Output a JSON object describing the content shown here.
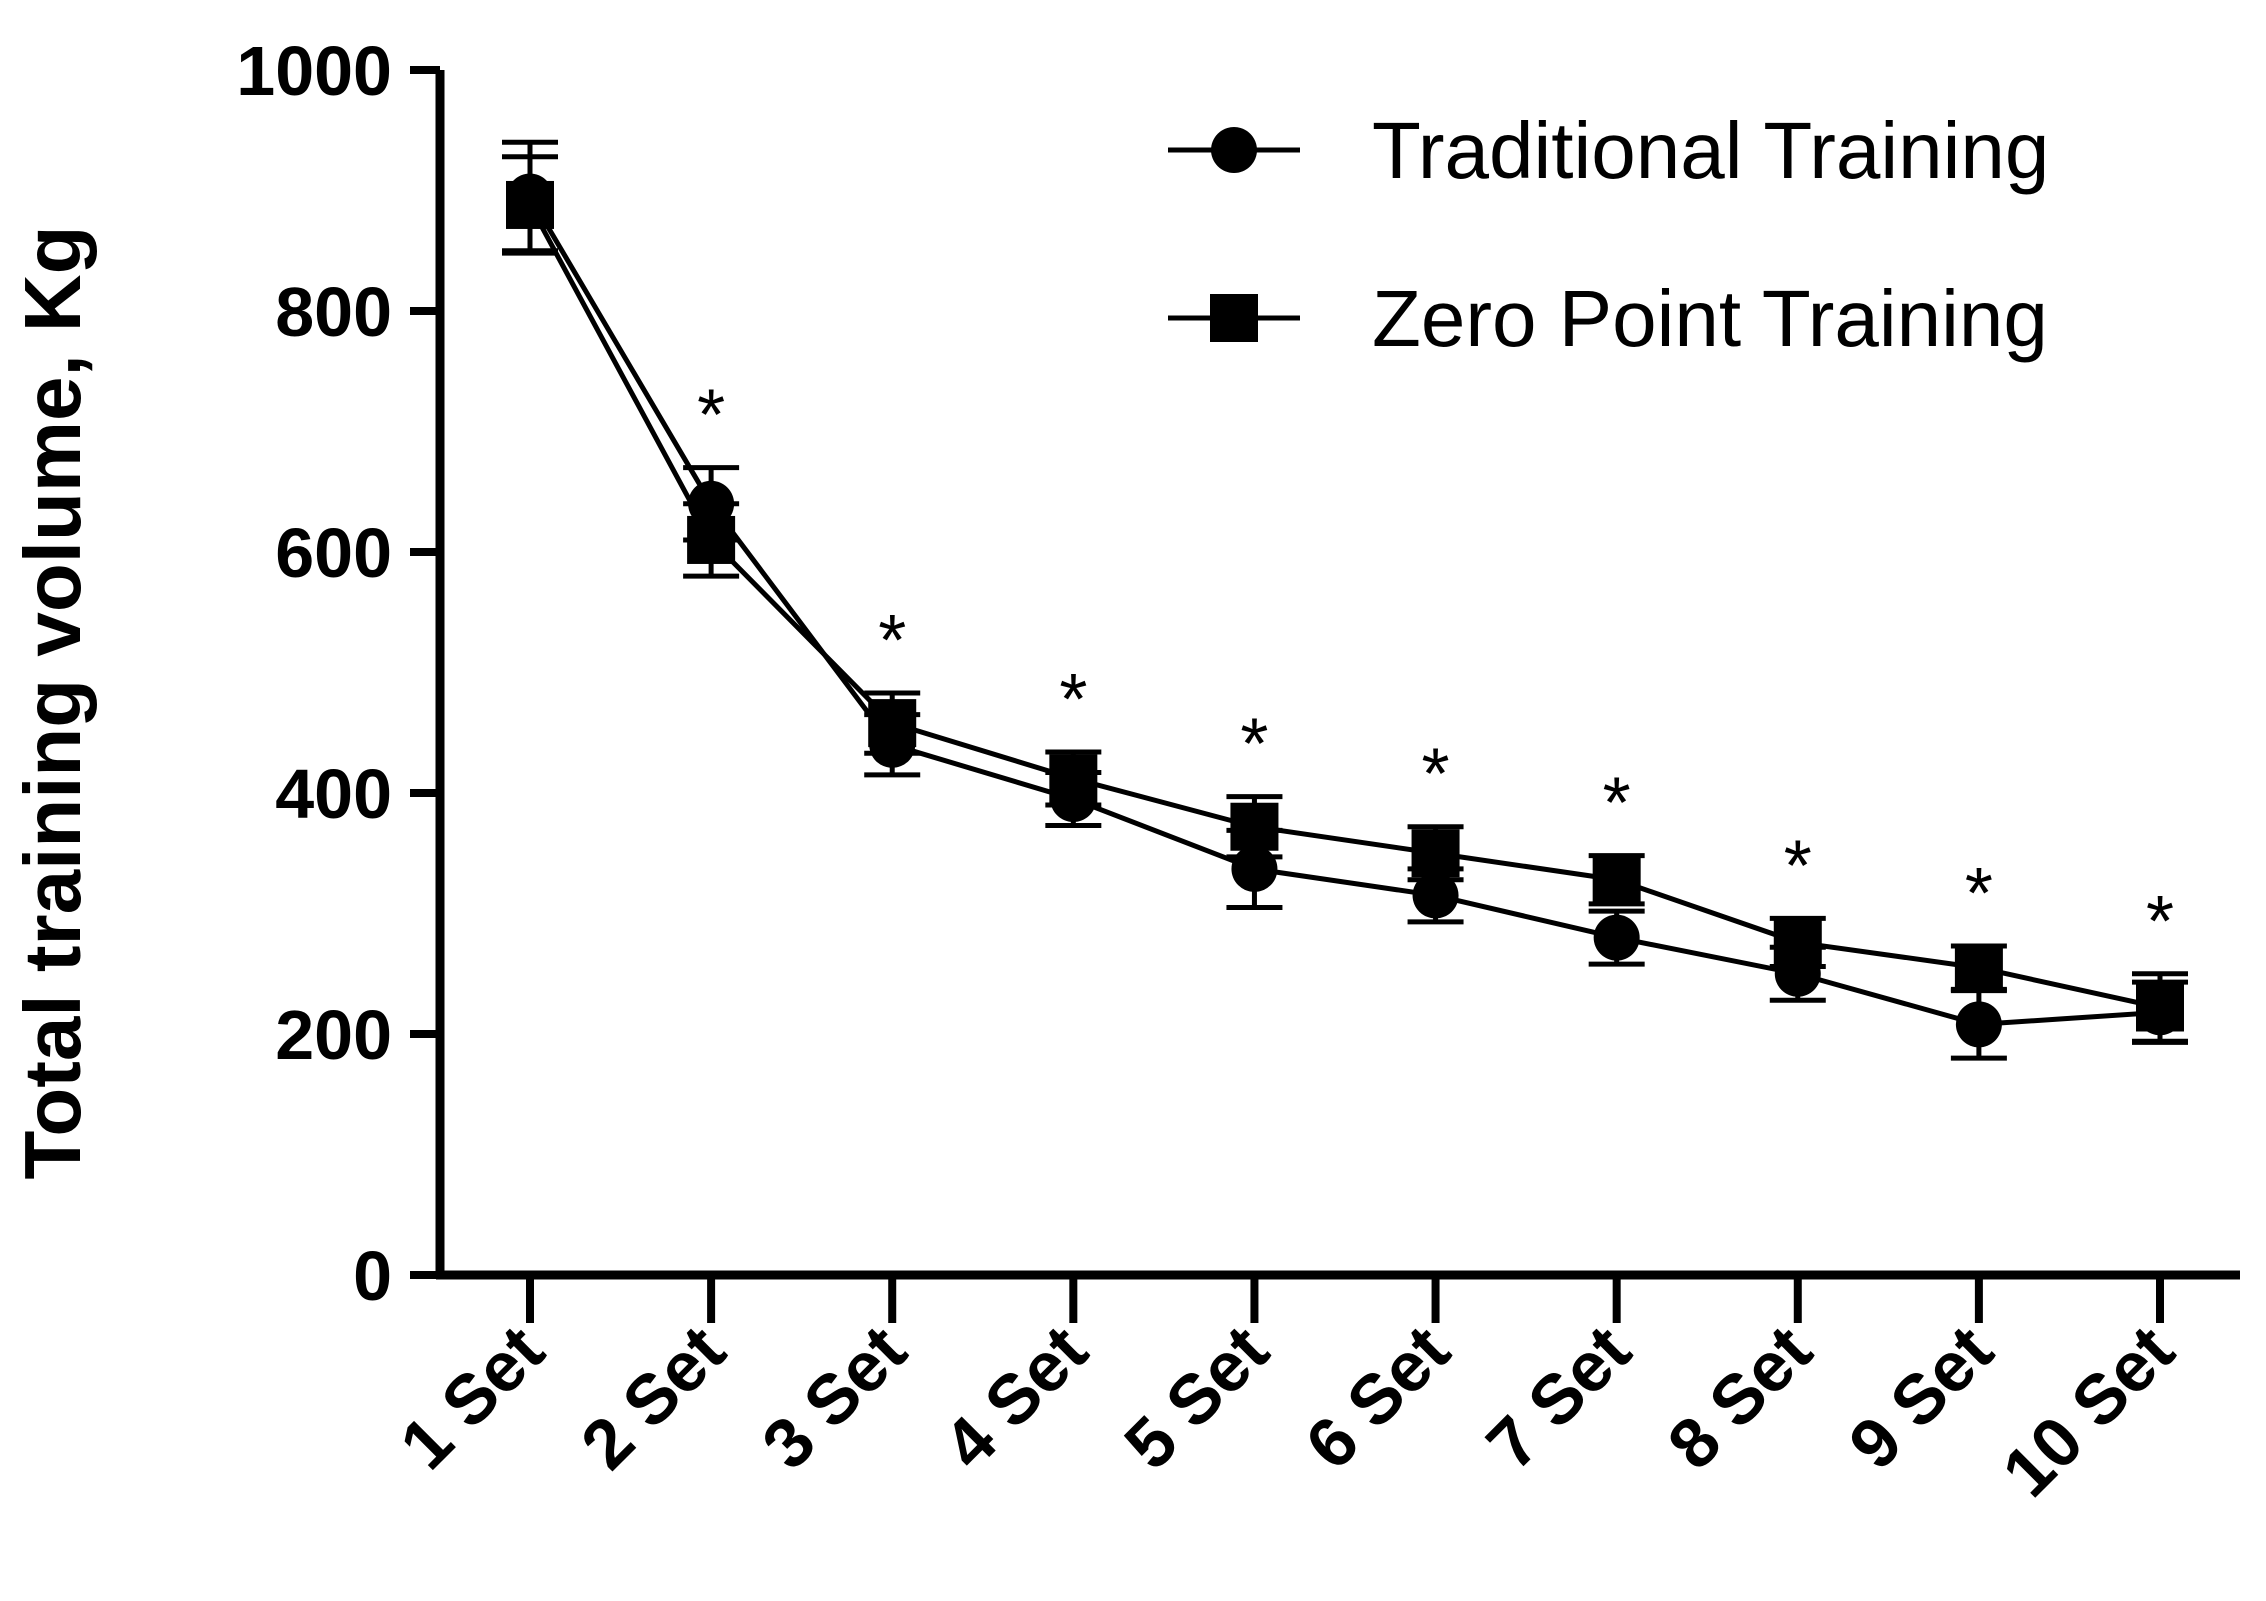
{
  "chart_data": {
    "type": "line",
    "title": "",
    "xlabel": "",
    "ylabel": "Total training volume, Kg",
    "ylim": [
      0,
      1000
    ],
    "yticks": [
      0,
      200,
      400,
      600,
      800,
      1000
    ],
    "categories": [
      "1 Set",
      "2 Set",
      "3 Set",
      "4 Set",
      "5 Set",
      "6 Set",
      "7 Set",
      "8 Set",
      "9 Set",
      "10 Set"
    ],
    "series": [
      {
        "name": "Traditional Training",
        "marker": "circle",
        "values": [
          895,
          640,
          440,
          395,
          337,
          315,
          280,
          250,
          208,
          218
        ],
        "errors": [
          45,
          30,
          25,
          22,
          32,
          22,
          22,
          22,
          28,
          25
        ]
      },
      {
        "name": "Zero Point Training",
        "marker": "square",
        "values": [
          888,
          610,
          458,
          412,
          372,
          350,
          328,
          276,
          255,
          222
        ],
        "errors": [
          40,
          30,
          25,
          22,
          25,
          22,
          20,
          20,
          18,
          28
        ]
      }
    ],
    "significance": {
      "symbol": "*",
      "categories": [
        "2 Set",
        "3 Set",
        "4 Set",
        "5 Set",
        "6 Set",
        "7 Set",
        "8 Set",
        "9 Set",
        "10 Set"
      ]
    },
    "legend": "top-right",
    "grid": false,
    "colors": {
      "line": "#000000",
      "background": "#ffffff"
    }
  }
}
